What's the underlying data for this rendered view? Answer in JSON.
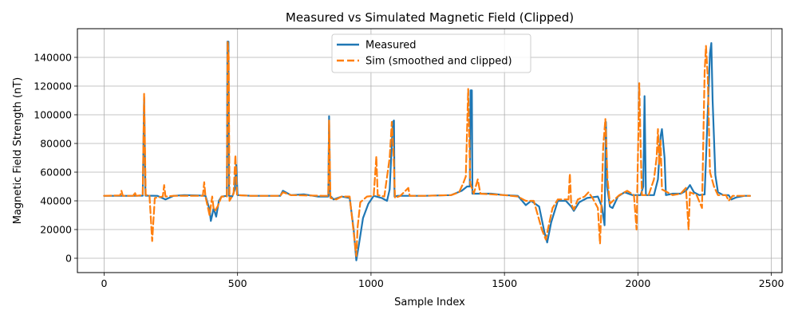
{
  "chart_data": {
    "type": "line",
    "title": "Measured vs Simulated Magnetic Field (Clipped)",
    "xlabel": "Sample Index",
    "ylabel": "Magnetic Field Strength (nT)",
    "xlim": [
      -100,
      2540
    ],
    "ylim": [
      -10000,
      160000
    ],
    "xticks": [
      0,
      500,
      1000,
      1500,
      2000,
      2500
    ],
    "yticks": [
      0,
      20000,
      40000,
      60000,
      80000,
      100000,
      120000,
      140000
    ],
    "grid": true,
    "legend_position": "top-center",
    "series": [
      {
        "name": "Measured",
        "color": "#1f77b4",
        "style": "solid",
        "points": [
          [
            0,
            43500
          ],
          [
            100,
            43500
          ],
          [
            145,
            43600
          ],
          [
            150,
            112000
          ],
          [
            155,
            43600
          ],
          [
            200,
            43500
          ],
          [
            230,
            41000
          ],
          [
            260,
            43500
          ],
          [
            300,
            44000
          ],
          [
            350,
            43800
          ],
          [
            380,
            43500
          ],
          [
            395,
            34000
          ],
          [
            400,
            26000
          ],
          [
            405,
            30000
          ],
          [
            410,
            35000
          ],
          [
            420,
            29000
          ],
          [
            430,
            40000
          ],
          [
            440,
            43000
          ],
          [
            460,
            43500
          ],
          [
            462,
            151000
          ],
          [
            466,
            151000
          ],
          [
            468,
            43500
          ],
          [
            480,
            43000
          ],
          [
            490,
            48000
          ],
          [
            495,
            65000
          ],
          [
            500,
            44000
          ],
          [
            550,
            43500
          ],
          [
            600,
            43500
          ],
          [
            660,
            43500
          ],
          [
            670,
            47000
          ],
          [
            700,
            44000
          ],
          [
            750,
            44500
          ],
          [
            800,
            43000
          ],
          [
            840,
            43000
          ],
          [
            843,
            99000
          ],
          [
            847,
            43500
          ],
          [
            860,
            41000
          ],
          [
            890,
            43000
          ],
          [
            920,
            42000
          ],
          [
            935,
            20000
          ],
          [
            945,
            -1500
          ],
          [
            955,
            10000
          ],
          [
            970,
            28000
          ],
          [
            990,
            38000
          ],
          [
            1010,
            43500
          ],
          [
            1040,
            42000
          ],
          [
            1060,
            40000
          ],
          [
            1070,
            48000
          ],
          [
            1082,
            95000
          ],
          [
            1086,
            96000
          ],
          [
            1088,
            43000
          ],
          [
            1100,
            43500
          ],
          [
            1200,
            43500
          ],
          [
            1300,
            44000
          ],
          [
            1340,
            47000
          ],
          [
            1360,
            50000
          ],
          [
            1370,
            50000
          ],
          [
            1373,
            117000
          ],
          [
            1378,
            117000
          ],
          [
            1380,
            45000
          ],
          [
            1450,
            45000
          ],
          [
            1500,
            44000
          ],
          [
            1550,
            43500
          ],
          [
            1580,
            37000
          ],
          [
            1600,
            40000
          ],
          [
            1630,
            36000
          ],
          [
            1650,
            18000
          ],
          [
            1660,
            11000
          ],
          [
            1675,
            25000
          ],
          [
            1700,
            40000
          ],
          [
            1730,
            40000
          ],
          [
            1750,
            36000
          ],
          [
            1760,
            33000
          ],
          [
            1780,
            39000
          ],
          [
            1810,
            42000
          ],
          [
            1850,
            43000
          ],
          [
            1865,
            36000
          ],
          [
            1875,
            23000
          ],
          [
            1880,
            95000
          ],
          [
            1885,
            50000
          ],
          [
            1895,
            36000
          ],
          [
            1905,
            35000
          ],
          [
            1925,
            43000
          ],
          [
            1950,
            46000
          ],
          [
            1980,
            44000
          ],
          [
            2010,
            44000
          ],
          [
            2020,
            50000
          ],
          [
            2025,
            113000
          ],
          [
            2030,
            44000
          ],
          [
            2060,
            44000
          ],
          [
            2075,
            55000
          ],
          [
            2085,
            85000
          ],
          [
            2090,
            90000
          ],
          [
            2100,
            70000
          ],
          [
            2105,
            44000
          ],
          [
            2130,
            45000
          ],
          [
            2160,
            45000
          ],
          [
            2180,
            47000
          ],
          [
            2195,
            51000
          ],
          [
            2210,
            46000
          ],
          [
            2230,
            44000
          ],
          [
            2250,
            44500
          ],
          [
            2270,
            143000
          ],
          [
            2275,
            150000
          ],
          [
            2280,
            110000
          ],
          [
            2290,
            58000
          ],
          [
            2300,
            46000
          ],
          [
            2320,
            44000
          ],
          [
            2340,
            44000
          ],
          [
            2350,
            41000
          ],
          [
            2370,
            42500
          ],
          [
            2400,
            43500
          ],
          [
            2420,
            43500
          ]
        ]
      },
      {
        "name": "Sim (smoothed and clipped)",
        "color": "#ff7f0e",
        "style": "dashed",
        "points": [
          [
            0,
            43500
          ],
          [
            60,
            43800
          ],
          [
            65,
            47000
          ],
          [
            70,
            43500
          ],
          [
            110,
            43500
          ],
          [
            115,
            46000
          ],
          [
            120,
            43500
          ],
          [
            145,
            44000
          ],
          [
            150,
            115000
          ],
          [
            156,
            44000
          ],
          [
            170,
            44000
          ],
          [
            180,
            12000
          ],
          [
            190,
            42000
          ],
          [
            220,
            43000
          ],
          [
            225,
            51000
          ],
          [
            230,
            43000
          ],
          [
            260,
            43500
          ],
          [
            370,
            43500
          ],
          [
            375,
            53000
          ],
          [
            380,
            43000
          ],
          [
            395,
            30000
          ],
          [
            405,
            43000
          ],
          [
            410,
            35000
          ],
          [
            415,
            33000
          ],
          [
            425,
            36000
          ],
          [
            440,
            43000
          ],
          [
            460,
            43000
          ],
          [
            463,
            151000
          ],
          [
            467,
            140000
          ],
          [
            470,
            40000
          ],
          [
            485,
            45000
          ],
          [
            492,
            72000
          ],
          [
            498,
            44000
          ],
          [
            550,
            43500
          ],
          [
            660,
            43500
          ],
          [
            670,
            46000
          ],
          [
            700,
            44000
          ],
          [
            820,
            43500
          ],
          [
            840,
            43500
          ],
          [
            843,
            96000
          ],
          [
            848,
            42000
          ],
          [
            870,
            41000
          ],
          [
            890,
            43000
          ],
          [
            920,
            43000
          ],
          [
            935,
            18000
          ],
          [
            945,
            1500
          ],
          [
            950,
            22000
          ],
          [
            960,
            39000
          ],
          [
            985,
            43000
          ],
          [
            1010,
            43500
          ],
          [
            1020,
            71000
          ],
          [
            1025,
            44000
          ],
          [
            1050,
            43000
          ],
          [
            1070,
            70000
          ],
          [
            1078,
            95000
          ],
          [
            1084,
            75000
          ],
          [
            1090,
            42000
          ],
          [
            1110,
            43500
          ],
          [
            1140,
            49000
          ],
          [
            1145,
            43500
          ],
          [
            1200,
            43500
          ],
          [
            1300,
            44000
          ],
          [
            1330,
            46000
          ],
          [
            1345,
            52000
          ],
          [
            1355,
            57000
          ],
          [
            1364,
            118000
          ],
          [
            1372,
            52000
          ],
          [
            1385,
            45000
          ],
          [
            1400,
            55000
          ],
          [
            1410,
            45000
          ],
          [
            1500,
            44000
          ],
          [
            1550,
            43000
          ],
          [
            1580,
            40000
          ],
          [
            1610,
            40000
          ],
          [
            1640,
            20000
          ],
          [
            1655,
            13000
          ],
          [
            1665,
            22000
          ],
          [
            1680,
            35000
          ],
          [
            1700,
            41000
          ],
          [
            1740,
            41000
          ],
          [
            1745,
            59000
          ],
          [
            1750,
            38000
          ],
          [
            1760,
            34000
          ],
          [
            1775,
            41000
          ],
          [
            1800,
            43000
          ],
          [
            1815,
            46000
          ],
          [
            1830,
            42000
          ],
          [
            1850,
            35000
          ],
          [
            1858,
            10000
          ],
          [
            1865,
            45000
          ],
          [
            1870,
            78000
          ],
          [
            1878,
            97000
          ],
          [
            1886,
            55000
          ],
          [
            1895,
            38000
          ],
          [
            1930,
            44000
          ],
          [
            1960,
            47000
          ],
          [
            1985,
            44000
          ],
          [
            1995,
            20000
          ],
          [
            2005,
            122000
          ],
          [
            2010,
            80000
          ],
          [
            2015,
            44000
          ],
          [
            2040,
            44000
          ],
          [
            2060,
            55000
          ],
          [
            2070,
            70000
          ],
          [
            2075,
            90000
          ],
          [
            2080,
            65000
          ],
          [
            2085,
            82000
          ],
          [
            2090,
            48000
          ],
          [
            2130,
            44000
          ],
          [
            2160,
            45000
          ],
          [
            2180,
            49000
          ],
          [
            2190,
            20000
          ],
          [
            2195,
            46000
          ],
          [
            2220,
            44000
          ],
          [
            2240,
            35000
          ],
          [
            2250,
            130000
          ],
          [
            2255,
            148000
          ],
          [
            2262,
            125000
          ],
          [
            2270,
            60000
          ],
          [
            2285,
            50000
          ],
          [
            2300,
            44000
          ],
          [
            2330,
            44000
          ],
          [
            2340,
            40000
          ],
          [
            2355,
            43500
          ],
          [
            2420,
            43500
          ]
        ]
      }
    ]
  }
}
